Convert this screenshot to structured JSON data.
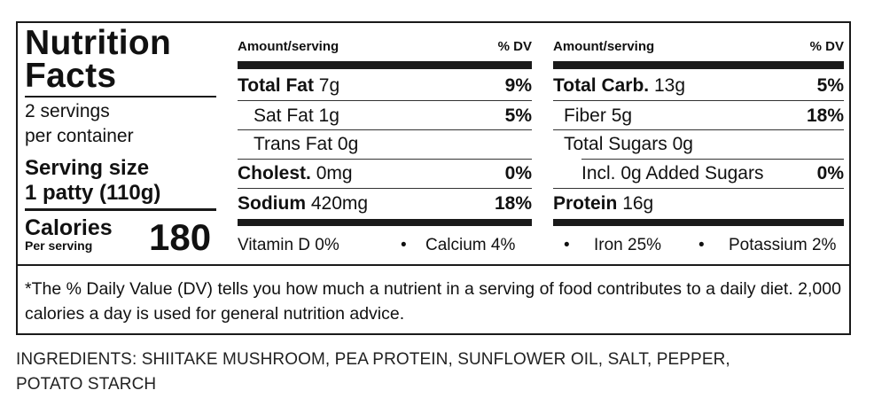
{
  "label": {
    "title_line1": "Nutrition",
    "title_line2": "Facts",
    "servings_line1": "2 servings",
    "servings_line2": "per container",
    "serving_size_label": "Serving size",
    "serving_size_value": "1 patty (110g)",
    "calories_label": "Calories",
    "calories_sub": "Per serving",
    "calories_value": "180"
  },
  "left_column": {
    "header": "Amount/serving",
    "dv_header": "% DV",
    "rows": [
      {
        "name": "Total Fat",
        "amount": "7g",
        "dv": "9%"
      },
      {
        "name": "Sat Fat",
        "amount": "1g",
        "dv": "5%"
      },
      {
        "name": "Trans Fat",
        "amount": "0g",
        "dv": ""
      },
      {
        "name": "Cholest.",
        "amount": "0mg",
        "dv": "0%"
      },
      {
        "name": "Sodium",
        "amount": "420mg",
        "dv": "18%"
      }
    ]
  },
  "right_column": {
    "header": "Amount/serving",
    "dv_header": "% DV",
    "rows": [
      {
        "name": "Total Carb.",
        "amount": "13g",
        "dv": "5%"
      },
      {
        "name": "Fiber",
        "amount": "5g",
        "dv": "18%"
      },
      {
        "name": "Total Sugars",
        "amount": "0g",
        "dv": ""
      },
      {
        "name": "Incl. 0g Added Sugars",
        "amount": "",
        "dv": "0%"
      },
      {
        "name": "Protein",
        "amount": "16g",
        "dv": ""
      }
    ]
  },
  "vitamins": {
    "vitamin_d": "Vitamin D 0%",
    "calcium": "Calcium 4%",
    "iron": "Iron 25%",
    "potassium": "Potassium 2%",
    "separator": "•"
  },
  "footnote": "*The % Daily Value (DV) tells you how much a nutrient in a serving of food contributes to a daily diet.  2,000 calories a day is used for general nutrition advice.",
  "ingredients_line1": "INGREDIENTS: SHIITAKE MUSHROOM, PEA PROTEIN, SUNFLOWER OIL, SALT, PEPPER,",
  "ingredients_line2": "POTATO STARCH"
}
